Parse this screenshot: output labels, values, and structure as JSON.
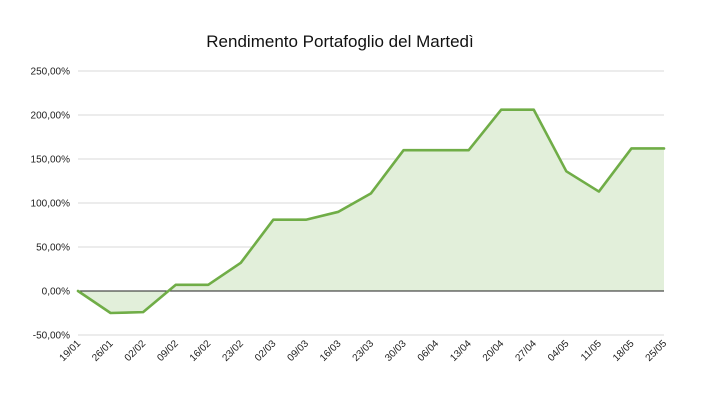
{
  "chart_data": {
    "type": "area",
    "title": "Rendimento Portafoglio del Martedì",
    "xlabel": "",
    "ylabel": "",
    "ylim": [
      -50,
      250
    ],
    "y_ticks": [
      250,
      200,
      150,
      100,
      50,
      0,
      -50
    ],
    "y_tick_labels": [
      "250,00%",
      "200,00%",
      "150,00%",
      "100,00%",
      "50,00%",
      "0,00%",
      "-50,00%"
    ],
    "categories": [
      "19/01",
      "26/01",
      "02/02",
      "09/02",
      "16/02",
      "23/02",
      "02/03",
      "09/03",
      "16/03",
      "23/03",
      "30/03",
      "06/04",
      "13/04",
      "20/04",
      "27/04",
      "04/05",
      "11/05",
      "18/05",
      "25/05"
    ],
    "series": [
      {
        "values": [
          0,
          -25,
          -24,
          7,
          7,
          32,
          81,
          81,
          90,
          111,
          160,
          160,
          160,
          206,
          206,
          136,
          113,
          162,
          162
        ],
        "color": "#70ad47",
        "fill": "#e2efda"
      }
    ],
    "grid": true,
    "legend": "none"
  }
}
